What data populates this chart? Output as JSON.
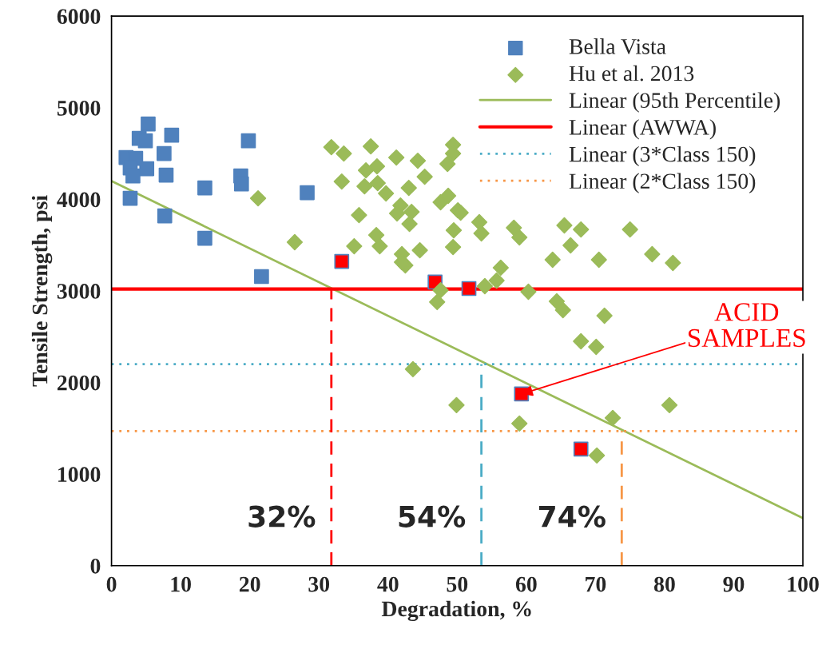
{
  "chart_data": {
    "type": "scatter",
    "xlabel": "Degradation, %",
    "ylabel": "Tensile Strength, psi",
    "xlim": [
      0,
      100
    ],
    "xticks": [
      0,
      10,
      20,
      30,
      40,
      50,
      60,
      70,
      80,
      90,
      100
    ],
    "ylim": [
      0,
      6000
    ],
    "yticks": [
      0,
      1000,
      2000,
      3000,
      4000,
      5000,
      6000
    ],
    "grid": false,
    "legend": "top right",
    "series": [
      {
        "name": "Bella Vista",
        "marker": "square",
        "color": "#4f81bd",
        "x": [
          5.3,
          4.0,
          4.9,
          8.7,
          2.1,
          3.5,
          7.6,
          2.7,
          5.1,
          3.1,
          7.9,
          2.7,
          13.5,
          18.7,
          18.8,
          19.8,
          28.3,
          7.7,
          13.5,
          21.7,
          33.3,
          46.8,
          51.7,
          59.3,
          67.9
        ],
        "values": [
          4822,
          4665,
          4639,
          4700,
          4456,
          4447,
          4500,
          4343,
          4334,
          4255,
          4264,
          4011,
          4125,
          4255,
          4168,
          4639,
          4072,
          3819,
          3575,
          3157,
          3322,
          3096,
          3026,
          1875,
          1273
        ],
        "colors": [
          "#4f81bd",
          "#4f81bd",
          "#4f81bd",
          "#4f81bd",
          "#4f81bd",
          "#4f81bd",
          "#4f81bd",
          "#4f81bd",
          "#4f81bd",
          "#4f81bd",
          "#4f81bd",
          "#4f81bd",
          "#4f81bd",
          "#4f81bd",
          "#4f81bd",
          "#4f81bd",
          "#4f81bd",
          "#4f81bd",
          "#4f81bd",
          "#4f81bd",
          "#ff0000",
          "#ff0000",
          "#ff0000",
          "#ff0000",
          "#ff0000"
        ]
      },
      {
        "name": "Hu et al. 2013",
        "marker": "diamond",
        "color": "#9bbb59",
        "x": [
          31.8,
          33.6,
          37.5,
          41.2,
          44.3,
          49.4,
          49.4,
          48.6,
          36.8,
          38.4,
          33.3,
          36.6,
          38.5,
          39.7,
          43.0,
          45.3,
          21.2,
          41.8,
          41.3,
          43.4,
          43.1,
          35.8,
          47.6,
          48.7,
          50.1,
          50.5,
          53.2,
          53.5,
          49.5,
          49.4,
          38.3,
          38.8,
          35.1,
          26.5,
          42.0,
          42.5,
          42.0,
          44.6,
          47.6,
          47.1,
          54.0,
          58.2,
          59.0,
          65.5,
          67.9,
          75.0,
          66.4,
          63.8,
          70.5,
          78.2,
          81.2,
          56.3,
          55.7,
          60.3,
          64.4,
          65.3,
          71.3,
          67.9,
          70.1,
          43.6,
          49.9,
          59.0,
          72.5,
          80.7,
          70.2
        ],
        "values": [
          4569,
          4500,
          4578,
          4456,
          4421,
          4595,
          4500,
          4386,
          4316,
          4360,
          4194,
          4142,
          4177,
          4064,
          4125,
          4247,
          4011,
          3933,
          3846,
          3863,
          3732,
          3828,
          3968,
          4038,
          3880,
          3854,
          3750,
          3628,
          3662,
          3479,
          3610,
          3488,
          3488,
          3532,
          3401,
          3279,
          3314,
          3444,
          3008,
          2878,
          3052,
          3689,
          3584,
          3715,
          3671,
          3671,
          3497,
          3340,
          3340,
          3401,
          3305,
          3253,
          3113,
          2991,
          2886,
          2790,
          2729,
          2450,
          2389,
          2145,
          1753,
          1552,
          1613,
          1753,
          1203
        ]
      },
      {
        "name": "Linear (95th Percentile)",
        "type": "line",
        "line_style": "solid",
        "color": "#9bbb59",
        "x": [
          0,
          100
        ],
        "values": [
          4200,
          520
        ]
      },
      {
        "name": "Linear (AWWA)",
        "type": "line",
        "line_style": "solid",
        "color": "#ff0000",
        "x": [
          0,
          100
        ],
        "values": [
          3020,
          3020
        ]
      },
      {
        "name": "Linear (3*Class 150)",
        "type": "line",
        "line_style": "dotted",
        "color": "#4bacc6",
        "x": [
          0,
          100
        ],
        "values": [
          2200,
          2200
        ]
      },
      {
        "name": "Linear (2*Class 150)",
        "type": "line",
        "line_style": "dotted",
        "color": "#f79646",
        "x": [
          0,
          100
        ],
        "values": [
          1470,
          1470
        ]
      },
      {
        "type": "line",
        "line_style": "dashed",
        "color": "#ff0000",
        "x": [
          31.8,
          31.8
        ],
        "values": [
          0,
          3020
        ]
      },
      {
        "type": "line",
        "line_style": "dashed",
        "color": "#4bacc6",
        "x": [
          53.5,
          53.5
        ],
        "values": [
          0,
          2200
        ]
      },
      {
        "type": "line",
        "line_style": "dashed",
        "color": "#f79646",
        "x": [
          73.8,
          73.8
        ],
        "values": [
          0,
          1470
        ]
      }
    ],
    "annotations": [
      {
        "text": "32%",
        "x": 31.8,
        "y": 0
      },
      {
        "text": "54%",
        "x": 53.5,
        "y": 0
      },
      {
        "text": "74%",
        "x": 73.8,
        "y": 0
      },
      {
        "text": "ACID\nSAMPLES",
        "x": 59.3,
        "y": 1875
      }
    ]
  }
}
